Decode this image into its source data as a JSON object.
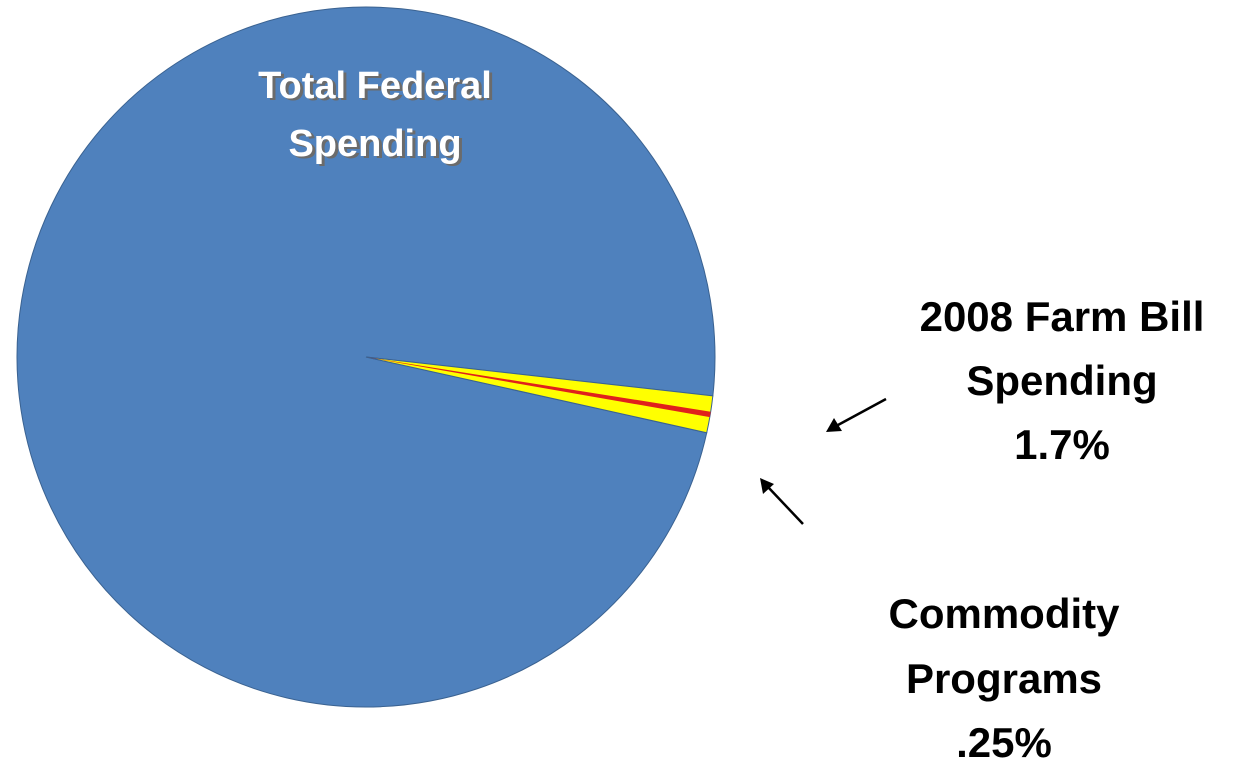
{
  "chart_data": {
    "type": "pie",
    "slices": [
      {
        "name": "Total Federal Spending",
        "label_lines": [
          "Total Federal",
          "Spending"
        ],
        "value": 98.3,
        "color": "#4F81BD"
      },
      {
        "name": "2008 Farm Bill Spending",
        "label_lines": [
          "2008 Farm Bill",
          "Spending",
          "1.7%"
        ],
        "value": 1.7,
        "color": "#FFFF00"
      }
    ],
    "sub_slice": {
      "name": "Commodity Programs",
      "label_lines": [
        "Commodity",
        "Programs",
        ".25%"
      ],
      "value": 0.25,
      "color": "#E0201C"
    },
    "legend": "none"
  }
}
